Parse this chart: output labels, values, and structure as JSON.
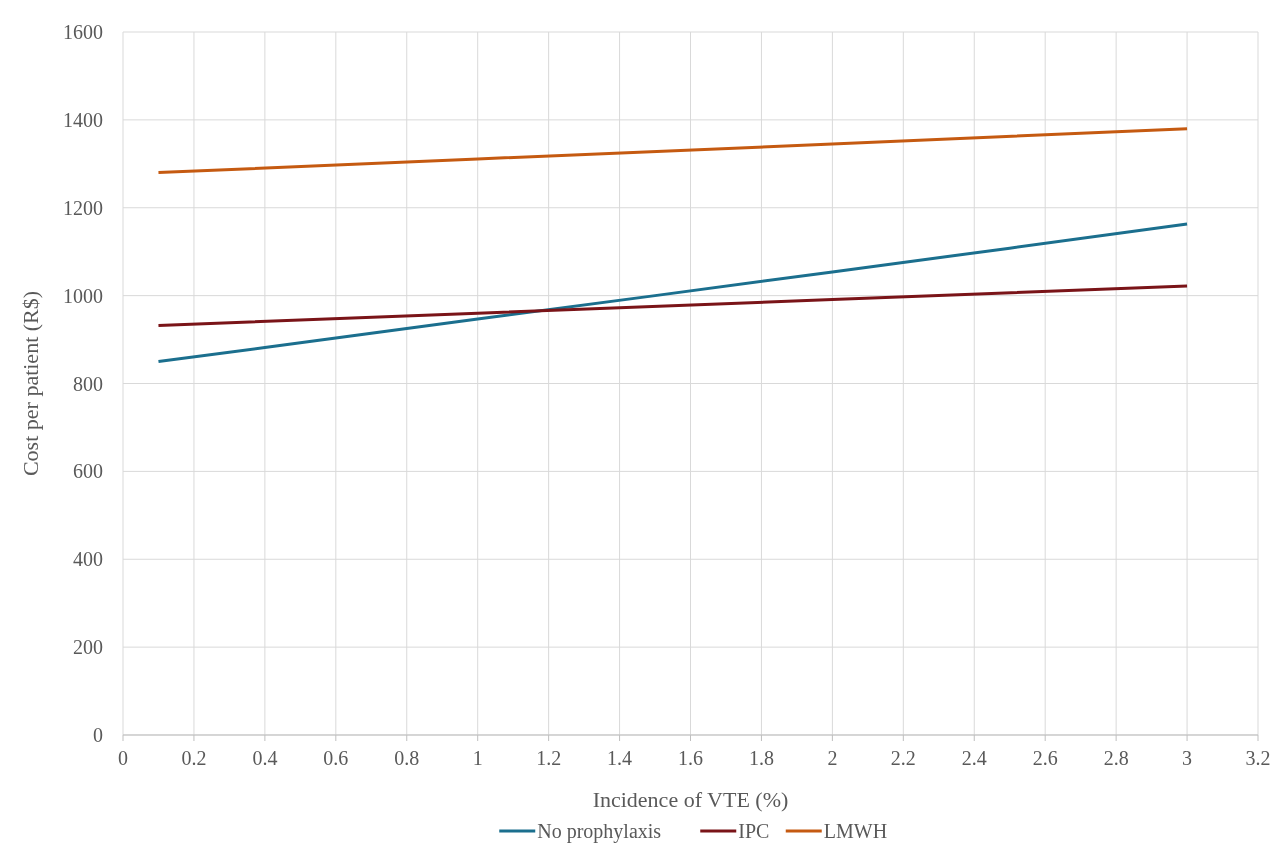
{
  "chart_data": {
    "type": "line",
    "xlabel": "Incidence of VTE (%)",
    "ylabel": "Cost per patient (R$)",
    "xlim": [
      0,
      3.2
    ],
    "xticks": [
      0,
      0.2,
      0.4,
      0.6,
      0.8,
      1,
      1.2,
      1.4,
      1.6,
      1.8,
      2,
      2.2,
      2.4,
      2.6,
      2.8,
      3,
      3.2
    ],
    "ylim": [
      0,
      1600
    ],
    "yticks": [
      0,
      200,
      400,
      600,
      800,
      1000,
      1200,
      1400,
      1600
    ],
    "grid": true,
    "legend": "bottom",
    "line_style": "solid",
    "marker": "none",
    "series": [
      {
        "name": "No prophylaxis",
        "color": "#1b6f8e",
        "x": [
          0.1,
          0.4,
          1,
          1.5,
          2,
          2.5,
          3
        ],
        "values": [
          850,
          882,
          947,
          1000,
          1054,
          1108,
          1163
        ]
      },
      {
        "name": "IPC",
        "color": "#7a1418",
        "x": [
          0.1,
          1,
          2,
          3
        ],
        "values": [
          932,
          960,
          991,
          1022
        ]
      },
      {
        "name": "LMWH",
        "color": "#c55a11",
        "x": [
          0.1,
          1,
          2,
          3
        ],
        "values": [
          1280,
          1311,
          1345,
          1380
        ]
      }
    ]
  }
}
